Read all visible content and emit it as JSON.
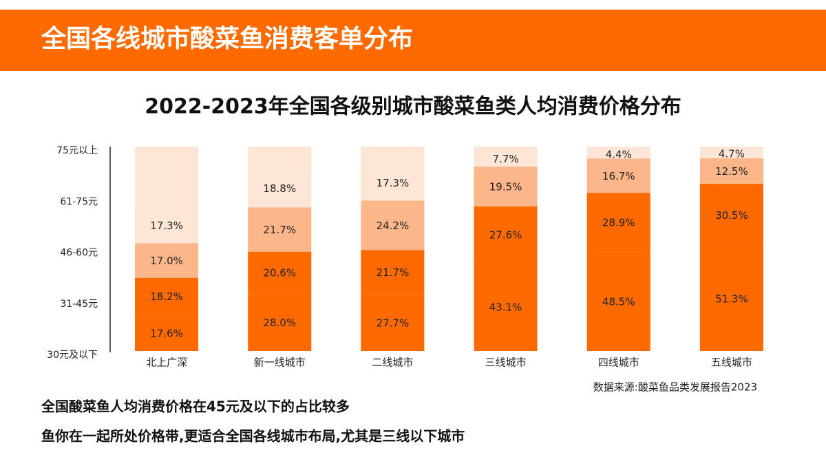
{
  "header": {
    "title": "全国各线城市酸菜鱼消费客单分布"
  },
  "chart_data": {
    "type": "stacked-bar",
    "title": "2022-2023年全国各级别城市酸菜鱼类人均消费价格分布",
    "categories": [
      "北上广深",
      "新一线城市",
      "二线城市",
      "三线城市",
      "四线城市",
      "五线城市"
    ],
    "y_labels": [
      "75元以上",
      "61-75元",
      "46-60元",
      "31-45元",
      "30元及以下"
    ],
    "ylim": [
      0,
      100
    ],
    "background_color": "#fde6d6",
    "series": [
      {
        "color": "#ff6a00",
        "values": [
          17.6,
          28.0,
          27.7,
          43.1,
          48.5,
          51.3
        ],
        "value_labels": [
          "17.6%",
          "28.0%",
          "27.7%",
          "43.1%",
          "48.5%",
          "51.3%"
        ]
      },
      {
        "color": "#ff6a00",
        "values": [
          18.2,
          20.6,
          21.7,
          27.6,
          28.9,
          30.5
        ],
        "value_labels": [
          "18.2%",
          "20.6%",
          "21.7%",
          "27.6%",
          "28.9%",
          "30.5%"
        ]
      },
      {
        "color": "#fbb68a",
        "values": [
          17.0,
          21.7,
          24.2,
          19.5,
          16.7,
          12.5
        ],
        "value_labels": [
          "17.0%",
          "21.7%",
          "24.2%",
          "19.5%",
          "16.7%",
          "12.5%"
        ]
      },
      {
        "color": "#fde6d6",
        "values": [
          17.3,
          18.8,
          17.3,
          7.7,
          4.4,
          4.7
        ],
        "value_labels": [
          "17.3%",
          "18.8%",
          "17.3%",
          "7.7%",
          "4.4%",
          "4.7%"
        ]
      }
    ],
    "source": "数据来源:酸菜鱼品类发展报告2023"
  },
  "notes": [
    "全国酸菜鱼人均消费价格在45元及以下的占比较多",
    "鱼你在一起所处价格带,更适合全国各线城市布局,尤其是三线以下城市"
  ]
}
